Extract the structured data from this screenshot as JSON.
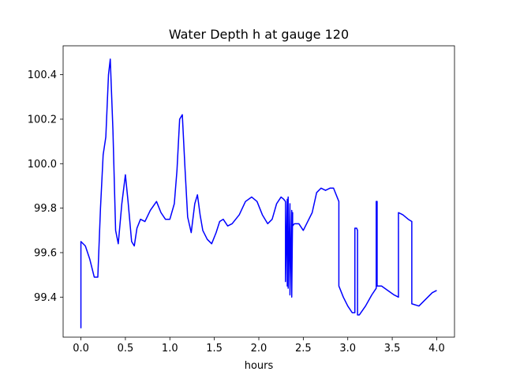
{
  "chart_data": {
    "type": "line",
    "title": "Water Depth h at gauge 120",
    "xlabel": "hours",
    "ylabel": "",
    "xlim": [
      -0.2,
      4.2
    ],
    "ylim": [
      99.22,
      100.53
    ],
    "xticks": [
      0.0,
      0.5,
      1.0,
      1.5,
      2.0,
      2.5,
      3.0,
      3.5,
      4.0
    ],
    "xtick_labels": [
      "0.0",
      "0.5",
      "1.0",
      "1.5",
      "2.0",
      "2.5",
      "3.0",
      "3.5",
      "4.0"
    ],
    "yticks": [
      99.4,
      99.6,
      99.8,
      100.0,
      100.2,
      100.4
    ],
    "ytick_labels": [
      "99.4",
      "99.6",
      "99.8",
      "100.0",
      "100.2",
      "100.4"
    ],
    "grid": false,
    "series": [
      {
        "color": "#0000ff",
        "x": [
          0.0,
          0.0,
          0.05,
          0.1,
          0.15,
          0.19,
          0.22,
          0.25,
          0.28,
          0.31,
          0.33,
          0.36,
          0.39,
          0.42,
          0.46,
          0.5,
          0.53,
          0.57,
          0.6,
          0.63,
          0.67,
          0.72,
          0.78,
          0.85,
          0.9,
          0.95,
          1.0,
          1.05,
          1.08,
          1.11,
          1.14,
          1.17,
          1.2,
          1.24,
          1.28,
          1.31,
          1.34,
          1.37,
          1.42,
          1.47,
          1.52,
          1.56,
          1.6,
          1.65,
          1.7,
          1.78,
          1.85,
          1.92,
          1.98,
          2.04,
          2.1,
          2.15,
          2.2,
          2.25,
          2.28,
          2.3,
          2.3,
          2.32,
          2.32,
          2.33,
          2.33,
          2.35,
          2.35,
          2.37,
          2.37,
          2.38,
          2.38,
          2.4,
          2.45,
          2.5,
          2.55,
          2.6,
          2.65,
          2.7,
          2.75,
          2.8,
          2.84,
          2.88,
          2.9,
          2.9,
          2.95,
          3.0,
          3.05,
          3.08,
          3.08,
          3.1,
          3.11,
          3.11,
          3.13,
          3.2,
          3.27,
          3.32,
          3.32,
          3.33,
          3.33,
          3.38,
          3.45,
          3.52,
          3.57,
          3.57,
          3.62,
          3.68,
          3.72,
          3.72,
          3.8,
          3.85,
          3.9,
          3.95,
          4.0
        ],
        "y": [
          99.26,
          99.65,
          99.63,
          99.57,
          99.49,
          99.49,
          99.8,
          100.04,
          100.12,
          100.4,
          100.47,
          100.15,
          99.7,
          99.64,
          99.82,
          99.95,
          99.83,
          99.65,
          99.63,
          99.71,
          99.75,
          99.74,
          99.79,
          99.83,
          99.78,
          99.75,
          99.75,
          99.82,
          99.97,
          100.2,
          100.22,
          99.98,
          99.76,
          99.69,
          99.82,
          99.86,
          99.77,
          99.7,
          99.66,
          99.64,
          99.69,
          99.74,
          99.75,
          99.72,
          99.73,
          99.77,
          99.83,
          99.85,
          99.83,
          99.77,
          99.73,
          99.75,
          99.82,
          99.85,
          99.84,
          99.83,
          99.47,
          99.84,
          99.45,
          99.85,
          99.44,
          99.82,
          99.41,
          99.79,
          99.4,
          99.78,
          99.72,
          99.73,
          99.73,
          99.7,
          99.74,
          99.78,
          99.87,
          99.89,
          99.88,
          99.89,
          99.89,
          99.85,
          99.83,
          99.45,
          99.4,
          99.36,
          99.33,
          99.33,
          99.71,
          99.71,
          99.7,
          99.32,
          99.32,
          99.36,
          99.41,
          99.44,
          99.83,
          99.83,
          99.45,
          99.45,
          99.43,
          99.41,
          99.4,
          99.78,
          99.77,
          99.75,
          99.74,
          99.37,
          99.36,
          99.38,
          99.4,
          99.42,
          99.43
        ]
      }
    ]
  }
}
